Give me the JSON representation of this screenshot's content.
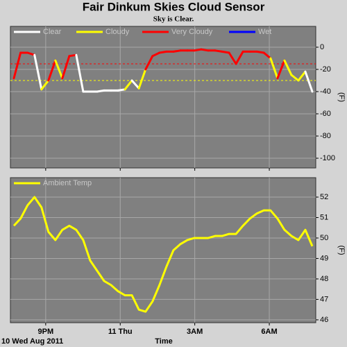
{
  "chart_data": [
    {
      "type": "line",
      "title": "Fair Dinkum Skies Cloud Sensor",
      "subtitle": "Sky is Clear.",
      "series": [
        {
          "name": "Clear",
          "color": "#ffffff"
        },
        {
          "name": "Cloudy",
          "color": "#ffff00"
        },
        {
          "name": "Very Cloudy",
          "color": "#ff0000"
        },
        {
          "name": "Wet",
          "color": "#0000ff"
        }
      ],
      "x": [
        -4.28,
        -4.01,
        -3.73,
        -3.45,
        -3.17,
        -2.89,
        -2.61,
        -2.33,
        -2.05,
        -1.77,
        -1.49,
        -1.21,
        -0.93,
        -0.65,
        -0.37,
        -0.09,
        0.19,
        0.47,
        0.75,
        1.02,
        1.3,
        1.58,
        1.86,
        2.14,
        2.42,
        2.7,
        2.98,
        3.26,
        3.54,
        3.82,
        4.1,
        4.38,
        4.66,
        4.94,
        5.22,
        5.5,
        5.78,
        6.05,
        6.33,
        6.61,
        6.89,
        7.17,
        7.45,
        7.73
      ],
      "values": [
        -28,
        -5,
        -5,
        -7,
        -38,
        -30,
        -12,
        -28,
        -8,
        -7,
        -40,
        -40,
        -40,
        -39,
        -39,
        -39,
        -38,
        -30,
        -37,
        -20,
        -8,
        -5,
        -4,
        -4,
        -3,
        -3,
        -3,
        -2,
        -3,
        -3,
        -4,
        -5,
        -15,
        -4,
        -4,
        -4,
        -5,
        -10,
        -28,
        -12,
        -25,
        -30,
        -22,
        -40
      ],
      "states": [
        1,
        2,
        2,
        2,
        0,
        1,
        2,
        1,
        2,
        2,
        0,
        0,
        0,
        0,
        0,
        0,
        0,
        1,
        0,
        1,
        2,
        2,
        2,
        2,
        2,
        2,
        2,
        2,
        2,
        2,
        2,
        2,
        2,
        2,
        2,
        2,
        2,
        2,
        1,
        2,
        1,
        1,
        1,
        0
      ],
      "xlim": [
        -4.42,
        7.87
      ],
      "xticks": [
        -3,
        0,
        3,
        6
      ],
      "ylim": [
        -108.75,
        18.75
      ],
      "yticks": [
        0,
        -20,
        -40,
        -60,
        -80,
        -100
      ],
      "ylabel": "(F)",
      "reference_lines": [
        {
          "value": -15,
          "color": "#ff0000"
        },
        {
          "value": -30,
          "color": "#ffff00"
        }
      ],
      "grid": true
    },
    {
      "type": "line",
      "series": [
        {
          "name": "Ambient Temp",
          "color": "#ffff00",
          "values": [
            50.6,
            50.95,
            51.6,
            52.0,
            51.5,
            50.3,
            49.9,
            50.4,
            50.6,
            50.4,
            49.9,
            48.9,
            48.4,
            47.9,
            47.7,
            47.4,
            47.2,
            47.2,
            46.5,
            46.4,
            46.9,
            47.7,
            48.6,
            49.4,
            49.7,
            49.9,
            50.0,
            50.0,
            50.0,
            50.1,
            50.1,
            50.2,
            50.2,
            50.6,
            50.95,
            51.2,
            51.35,
            51.35,
            50.95,
            50.4,
            50.1,
            49.9,
            50.4,
            49.6
          ]
        }
      ],
      "x": [
        -4.28,
        -4.01,
        -3.73,
        -3.45,
        -3.17,
        -2.89,
        -2.61,
        -2.33,
        -2.05,
        -1.77,
        -1.49,
        -1.21,
        -0.93,
        -0.65,
        -0.37,
        -0.09,
        0.19,
        0.47,
        0.75,
        1.02,
        1.3,
        1.58,
        1.86,
        2.14,
        2.42,
        2.7,
        2.98,
        3.26,
        3.54,
        3.82,
        4.1,
        4.38,
        4.66,
        4.94,
        5.22,
        5.5,
        5.78,
        6.05,
        6.33,
        6.61,
        6.89,
        7.17,
        7.45,
        7.73
      ],
      "xlim": [
        -4.42,
        7.87
      ],
      "xticks": [
        {
          "value": -3,
          "label": "9PM"
        },
        {
          "value": 0,
          "label": "11 Thu"
        },
        {
          "value": 3,
          "label": "3AM"
        },
        {
          "value": 6,
          "label": "6AM"
        }
      ],
      "ylim": [
        45.86,
        52.95
      ],
      "yticks": [
        46,
        47,
        48,
        49,
        50,
        51,
        52
      ],
      "ylabel": "(F)",
      "xlabel": "Time",
      "date": "10 Wed Aug 2011",
      "grid": true
    }
  ]
}
